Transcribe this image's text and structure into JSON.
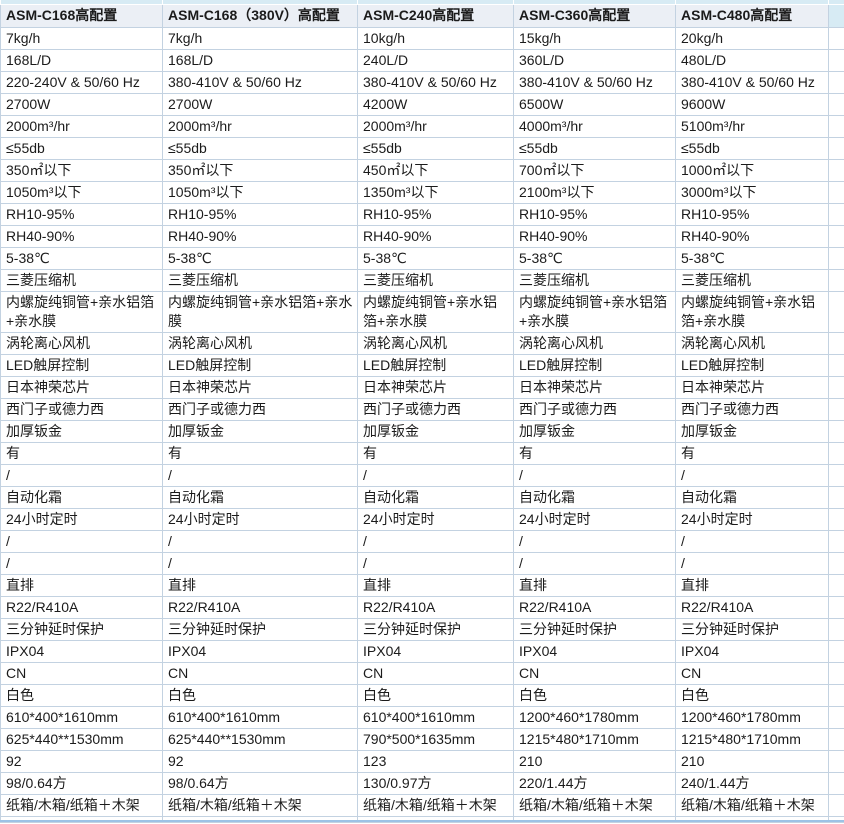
{
  "colors": {
    "strip_blue": "#d7ebf4",
    "header_bg": "#ebeff5",
    "gridline": "#c3d2e1",
    "bottom_accent": "#9cc2e5"
  },
  "table": {
    "headers": [
      "ASM-C168高配置",
      "ASM-C168（380V）高配置",
      "ASM-C240高配置",
      "ASM-C360高配置",
      "ASM-C480高配置"
    ],
    "rows": [
      [
        "7kg/h",
        "7kg/h",
        "10kg/h",
        "15kg/h",
        "20kg/h"
      ],
      [
        "168L/D",
        "168L/D",
        "240L/D",
        "360L/D",
        "480L/D"
      ],
      [
        "220-240V & 50/60 Hz",
        "380-410V & 50/60 Hz",
        "380-410V & 50/60 Hz",
        "380-410V & 50/60 Hz",
        "380-410V & 50/60 Hz"
      ],
      [
        "2700W",
        "2700W",
        "4200W",
        "6500W",
        "9600W"
      ],
      [
        "2000m³/hr",
        "2000m³/hr",
        "2000m³/hr",
        "4000m³/hr",
        "5100m³/hr"
      ],
      [
        "≤55db",
        "≤55db",
        "≤55db",
        "≤55db",
        "≤55db"
      ],
      [
        "350㎡以下",
        "350㎡以下",
        "450㎡以下",
        "700㎡以下",
        "1000㎡以下"
      ],
      [
        "1050m³以下",
        "1050m³以下",
        "1350m³以下",
        "2100m³以下",
        "3000m³以下"
      ],
      [
        "RH10-95%",
        "RH10-95%",
        "RH10-95%",
        "RH10-95%",
        "RH10-95%"
      ],
      [
        "RH40-90%",
        "RH40-90%",
        "RH40-90%",
        "RH40-90%",
        "RH40-90%"
      ],
      [
        "5-38℃",
        "5-38℃",
        "5-38℃",
        "5-38℃",
        "5-38℃"
      ],
      [
        "三菱压缩机",
        "三菱压缩机",
        "三菱压缩机",
        "三菱压缩机",
        "三菱压缩机"
      ],
      [
        "内螺旋纯铜管+亲水铝箔+亲水膜",
        "内螺旋纯铜管+亲水铝箔+亲水膜",
        "内螺旋纯铜管+亲水铝箔+亲水膜",
        "内螺旋纯铜管+亲水铝箔+亲水膜",
        "内螺旋纯铜管+亲水铝箔+亲水膜"
      ],
      [
        "涡轮离心风机",
        "涡轮离心风机",
        "涡轮离心风机",
        "涡轮离心风机",
        "涡轮离心风机"
      ],
      [
        "LED触屏控制",
        "LED触屏控制",
        "LED触屏控制",
        "LED触屏控制",
        "LED触屏控制"
      ],
      [
        "日本神荣芯片",
        "日本神荣芯片",
        "日本神荣芯片",
        "日本神荣芯片",
        "日本神荣芯片"
      ],
      [
        "西门子或德力西",
        "西门子或德力西",
        "西门子或德力西",
        "西门子或德力西",
        "西门子或德力西"
      ],
      [
        "加厚钣金",
        "加厚钣金",
        "加厚钣金",
        "加厚钣金",
        "加厚钣金"
      ],
      [
        "有",
        "有",
        "有",
        "有",
        "有"
      ],
      [
        "/",
        "/",
        "/",
        "/",
        "/"
      ],
      [
        "自动化霜",
        "自动化霜",
        "自动化霜",
        "自动化霜",
        "自动化霜"
      ],
      [
        "24小时定时",
        "24小时定时",
        "24小时定时",
        "24小时定时",
        "24小时定时"
      ],
      [
        "/",
        "/",
        "/",
        "/",
        "/"
      ],
      [
        "/",
        "/",
        "/",
        "/",
        "/"
      ],
      [
        "直排",
        "直排",
        "直排",
        "直排",
        "直排"
      ],
      [
        "R22/R410A",
        "R22/R410A",
        "R22/R410A",
        "R22/R410A",
        "R22/R410A"
      ],
      [
        "三分钟延时保护",
        "三分钟延时保护",
        "三分钟延时保护",
        "三分钟延时保护",
        "三分钟延时保护"
      ],
      [
        "IPX04",
        "IPX04",
        "IPX04",
        "IPX04",
        "IPX04"
      ],
      [
        "CN",
        "CN",
        "CN",
        "CN",
        "CN"
      ],
      [
        "白色",
        "白色",
        "白色",
        "白色",
        "白色"
      ],
      [
        "610*400*1610mm",
        "610*400*1610mm",
        "610*400*1610mm",
        "1200*460*1780mm",
        "1200*460*1780mm"
      ],
      [
        "625*440**1530mm",
        "625*440**1530mm",
        "790*500*1635mm",
        "1215*480*1710mm",
        "1215*480*1710mm"
      ],
      [
        "92",
        "92",
        "123",
        "210",
        "210"
      ],
      [
        "98/0.64方",
        "98/0.64方",
        "130/0.97方",
        "220/1.44方",
        "240/1.44方"
      ],
      [
        "纸箱/木箱/纸箱＋木架",
        "纸箱/木箱/纸箱＋木架",
        "纸箱/木箱/纸箱＋木架",
        "纸箱/木箱/纸箱＋木架",
        "纸箱/木箱/纸箱＋木架"
      ]
    ]
  }
}
